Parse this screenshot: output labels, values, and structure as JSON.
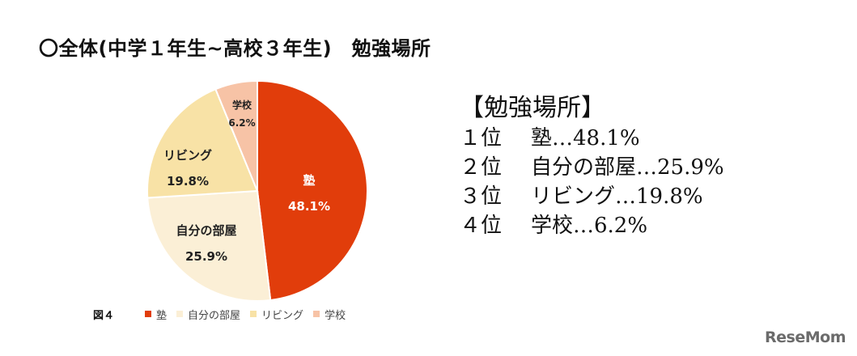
{
  "title": "〇全体(中学１年生~高校３年生)　勉強場所",
  "chart_data": {
    "type": "pie",
    "categories": [
      "塾",
      "自分の部屋",
      "リビング",
      "学校"
    ],
    "values": [
      48.1,
      25.9,
      19.8,
      6.2
    ],
    "value_labels": [
      "48.1%",
      "25.9%",
      "19.8%",
      "6.2%"
    ],
    "colors": [
      "#E13D0B",
      "#FBEFD6",
      "#F8E2A6",
      "#F7C3A6"
    ],
    "label_colors": [
      "#ffffff",
      "#222222",
      "#222222",
      "#222222"
    ],
    "start": "12 o'clock, clockwise"
  },
  "legend": {
    "figure_label": "図４",
    "items": [
      {
        "label": "塾",
        "color": "#E13D0B"
      },
      {
        "label": "自分の部屋",
        "color": "#FBEFD6"
      },
      {
        "label": "リビング",
        "color": "#F8E2A6"
      },
      {
        "label": "学校",
        "color": "#F7C3A6"
      }
    ]
  },
  "summary": {
    "heading": "【勉強場所】",
    "rows": [
      {
        "rank": "１位",
        "text": "塾…48.1%"
      },
      {
        "rank": "２位",
        "text": "自分の部屋…25.9%"
      },
      {
        "rank": "３位",
        "text": "リビング…19.8%"
      },
      {
        "rank": "４位",
        "text": "学校…6.2%"
      }
    ]
  },
  "logo": "ReseMom"
}
